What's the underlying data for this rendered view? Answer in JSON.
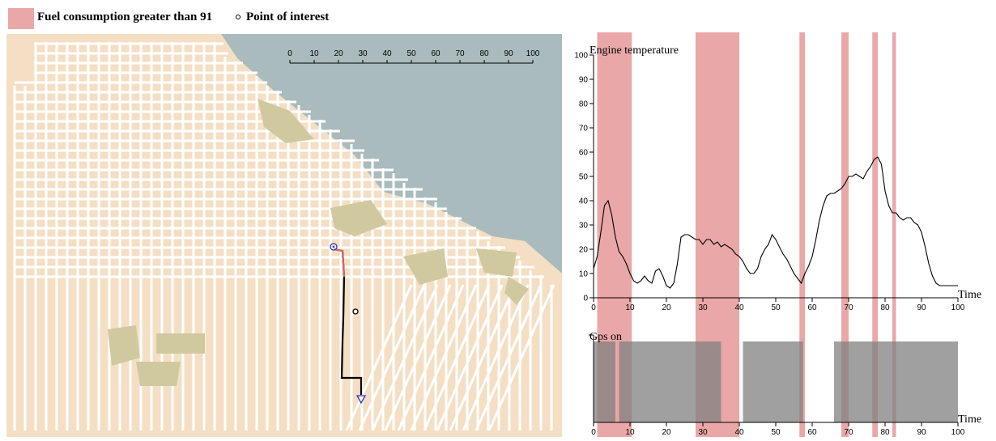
{
  "legend": {
    "fuel_label": "Fuel consumption greater than 91",
    "poi_label": "Point of interest",
    "fuel_color": "#eaa7a8"
  },
  "map": {
    "scale_ticks": [
      "0",
      "10",
      "20",
      "30",
      "40",
      "50",
      "60",
      "70",
      "80",
      "90",
      "100"
    ],
    "colors": {
      "land": "#f4dfc4",
      "water": "#a9bbbc",
      "park": "#d0c99f",
      "street": "#ffffff",
      "route": "#000000",
      "route_alt": "#d46a6a",
      "marker": "#3333cc"
    }
  },
  "chart_data": [
    {
      "type": "line",
      "title": "",
      "ylabel": "Engine temperature",
      "xlabel": "Time",
      "xlim": [
        0,
        100
      ],
      "ylim": [
        0,
        100
      ],
      "x_ticks": [
        0,
        10,
        20,
        30,
        40,
        50,
        60,
        70,
        80,
        90,
        100
      ],
      "y_ticks": [
        0,
        10,
        20,
        30,
        40,
        50,
        60,
        70,
        80,
        90,
        100
      ],
      "grid": false,
      "series": [
        {
          "x": [
            0,
            1,
            2,
            3,
            4,
            5,
            6,
            7,
            8,
            9,
            10,
            11,
            12,
            13,
            14,
            15,
            16,
            17,
            18,
            19,
            20,
            21,
            22,
            23,
            24,
            25,
            26,
            27,
            28,
            29,
            30,
            31,
            32,
            33,
            34,
            35,
            36,
            37,
            38,
            39,
            40,
            41,
            42,
            43,
            44,
            45,
            46,
            47,
            48,
            49,
            50,
            51,
            52,
            53,
            54,
            55,
            56,
            57,
            58,
            59,
            60,
            61,
            62,
            63,
            64,
            65,
            66,
            67,
            68,
            69,
            70,
            71,
            72,
            73,
            74,
            75,
            76,
            77,
            78,
            79,
            80,
            81,
            82,
            83,
            84,
            85,
            86,
            87,
            88,
            89,
            90,
            91,
            92,
            93,
            94,
            95,
            96,
            97,
            98,
            99,
            100
          ],
          "y": [
            12,
            17,
            27,
            38,
            40,
            34,
            25,
            19,
            17,
            14,
            10,
            7,
            6,
            7,
            9,
            7,
            6,
            11,
            12,
            9,
            5,
            4,
            6,
            14,
            25,
            26,
            26,
            25,
            24,
            24,
            22,
            24,
            24,
            22,
            23,
            21,
            22,
            21,
            20,
            18,
            17,
            15,
            12,
            10,
            10,
            12,
            17,
            20,
            22,
            26,
            24,
            21,
            18,
            16,
            13,
            10,
            8,
            6,
            10,
            13,
            17,
            24,
            32,
            38,
            42,
            43,
            43,
            44,
            45,
            47,
            50,
            50,
            51,
            50,
            49,
            52,
            54,
            57,
            58,
            55,
            44,
            38,
            35,
            35,
            33,
            32,
            33,
            33,
            31,
            30,
            27,
            21,
            14,
            9,
            6,
            5,
            5,
            5,
            5,
            5,
            5
          ]
        }
      ],
      "bands": [
        [
          1,
          10.5
        ],
        [
          28,
          40
        ],
        [
          56.5,
          58
        ],
        [
          68,
          70
        ],
        [
          76.5,
          78
        ],
        [
          82,
          83
        ]
      ],
      "band_color": "#eaa7a8",
      "line_color": "#000000"
    },
    {
      "type": "area",
      "title": "",
      "ylabel": "Gps on",
      "xlabel": "Time",
      "xlim": [
        0,
        100
      ],
      "x_ticks": [
        0,
        10,
        20,
        30,
        40,
        50,
        60,
        70,
        80,
        90,
        100
      ],
      "on_intervals": [
        [
          0,
          6
        ],
        [
          7,
          35
        ],
        [
          41,
          57.5
        ],
        [
          66,
          100
        ]
      ],
      "on_color": "#808080"
    }
  ]
}
